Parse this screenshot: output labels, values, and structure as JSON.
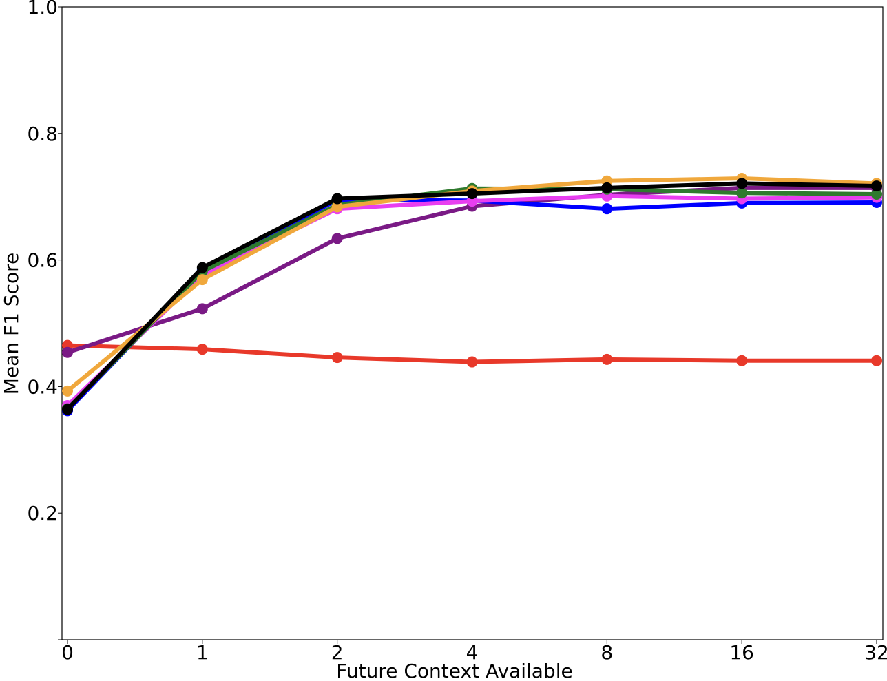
{
  "chart_data": {
    "type": "line",
    "title": "",
    "xlabel": "Future Context Available",
    "ylabel": "Mean F1 Score",
    "categories": [
      "0",
      "1",
      "2",
      "4",
      "8",
      "16",
      "32"
    ],
    "ylim": [
      0.0,
      1.0
    ],
    "yticks": [
      "0.2",
      "0.4",
      "0.6",
      "0.8",
      "1.0"
    ],
    "grid": false,
    "legend": "none",
    "series": [
      {
        "name": "red",
        "color": "#e8392a",
        "values": [
          0.465,
          0.459,
          0.446,
          0.439,
          0.443,
          0.441,
          0.441
        ]
      },
      {
        "name": "purple",
        "color": "#7a1a85",
        "values": [
          0.454,
          0.523,
          0.634,
          0.685,
          0.703,
          0.714,
          0.714
        ]
      },
      {
        "name": "blue",
        "color": "#0000ff",
        "values": [
          0.362,
          0.584,
          0.695,
          0.694,
          0.681,
          0.69,
          0.691
        ]
      },
      {
        "name": "magenta",
        "color": "#e83ef0",
        "values": [
          0.37,
          0.576,
          0.681,
          0.693,
          0.701,
          0.697,
          0.699
        ]
      },
      {
        "name": "green",
        "color": "#2f7a2e",
        "values": [
          0.365,
          0.582,
          0.687,
          0.713,
          0.712,
          0.706,
          0.704
        ]
      },
      {
        "name": "orange",
        "color": "#f0a83c",
        "values": [
          0.393,
          0.569,
          0.684,
          0.709,
          0.725,
          0.729,
          0.721
        ]
      },
      {
        "name": "black",
        "color": "#000000",
        "values": [
          0.364,
          0.588,
          0.697,
          0.705,
          0.714,
          0.721,
          0.717
        ]
      }
    ]
  }
}
